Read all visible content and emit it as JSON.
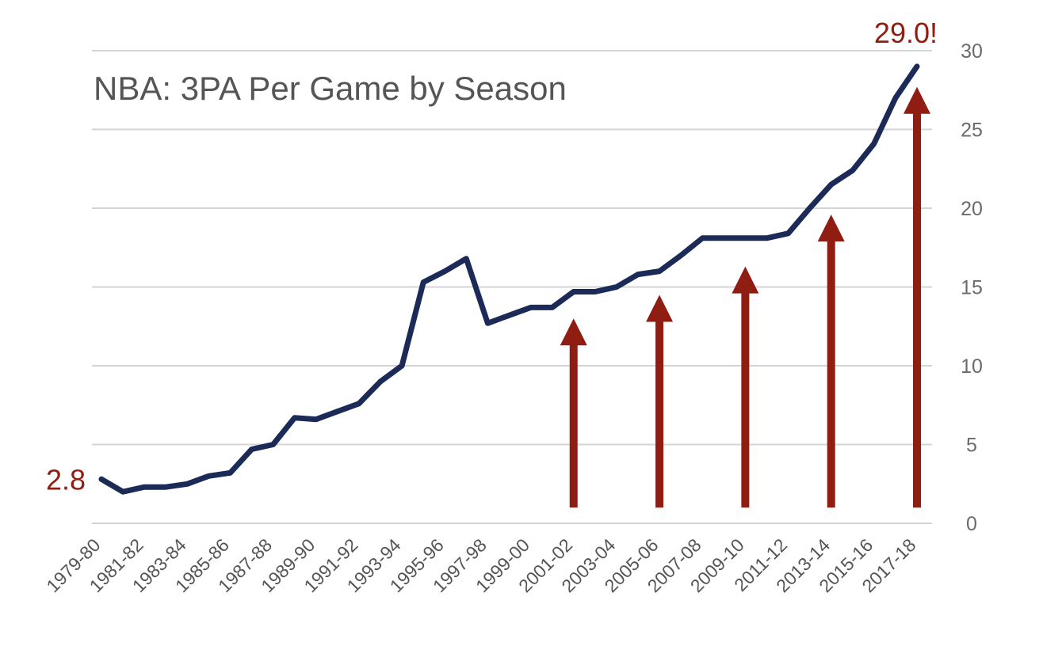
{
  "chart_data": {
    "type": "line",
    "title": "NBA: 3PA Per Game by Season",
    "xlabel": "",
    "ylabel": "",
    "ylim": [
      0,
      30
    ],
    "yticks": [
      0,
      5,
      10,
      15,
      20,
      25,
      30
    ],
    "y_axis_side": "right",
    "grid": true,
    "legend": "none",
    "categories": [
      "1979-80",
      "1980-81",
      "1981-82",
      "1982-83",
      "1983-84",
      "1984-85",
      "1985-86",
      "1986-87",
      "1987-88",
      "1988-89",
      "1989-90",
      "1990-91",
      "1991-92",
      "1992-93",
      "1993-94",
      "1994-95",
      "1995-96",
      "1996-97",
      "1997-98",
      "1998-99",
      "1999-00",
      "2000-01",
      "2001-02",
      "2002-03",
      "2003-04",
      "2004-05",
      "2005-06",
      "2006-07",
      "2007-08",
      "2008-09",
      "2009-10",
      "2010-11",
      "2011-12",
      "2012-13",
      "2013-14",
      "2014-15",
      "2015-16",
      "2016-17",
      "2017-18"
    ],
    "tick_labels": [
      "1979-80",
      "1981-82",
      "1983-84",
      "1985-86",
      "1987-88",
      "1989-90",
      "1991-92",
      "1993-94",
      "1995-96",
      "1997-98",
      "1999-00",
      "2001-02",
      "2003-04",
      "2005-06",
      "2007-08",
      "2009-10",
      "2011-12",
      "2013-14",
      "2015-16",
      "2017-18"
    ],
    "series": [
      {
        "color": "#1b2a57",
        "values": [
          2.8,
          2.0,
          2.3,
          2.3,
          2.5,
          3.0,
          3.2,
          4.7,
          5.0,
          6.7,
          6.6,
          7.1,
          7.6,
          9.0,
          10.0,
          15.3,
          16.0,
          16.8,
          12.7,
          13.2,
          13.7,
          13.7,
          14.7,
          14.7,
          15.0,
          15.8,
          16.0,
          17.0,
          18.1,
          18.1,
          18.1,
          18.1,
          18.4,
          20.0,
          21.5,
          22.4,
          24.1,
          27.0,
          29.0
        ]
      }
    ],
    "annotations": [
      {
        "text": "2.8",
        "season": "1979-80",
        "color": "#8f1d12"
      },
      {
        "text": "29.0!",
        "season": "2017-18",
        "color": "#8f1d12"
      }
    ],
    "arrows": {
      "color": "#8f1d12",
      "items": [
        {
          "season": "2001-02",
          "from": 1.0,
          "to": 13.0
        },
        {
          "season": "2005-06",
          "from": 1.0,
          "to": 14.5
        },
        {
          "season": "2009-10",
          "from": 1.0,
          "to": 16.3
        },
        {
          "season": "2013-14",
          "from": 1.0,
          "to": 19.6
        },
        {
          "season": "2017-18",
          "from": 1.0,
          "to": 27.7
        }
      ]
    }
  }
}
